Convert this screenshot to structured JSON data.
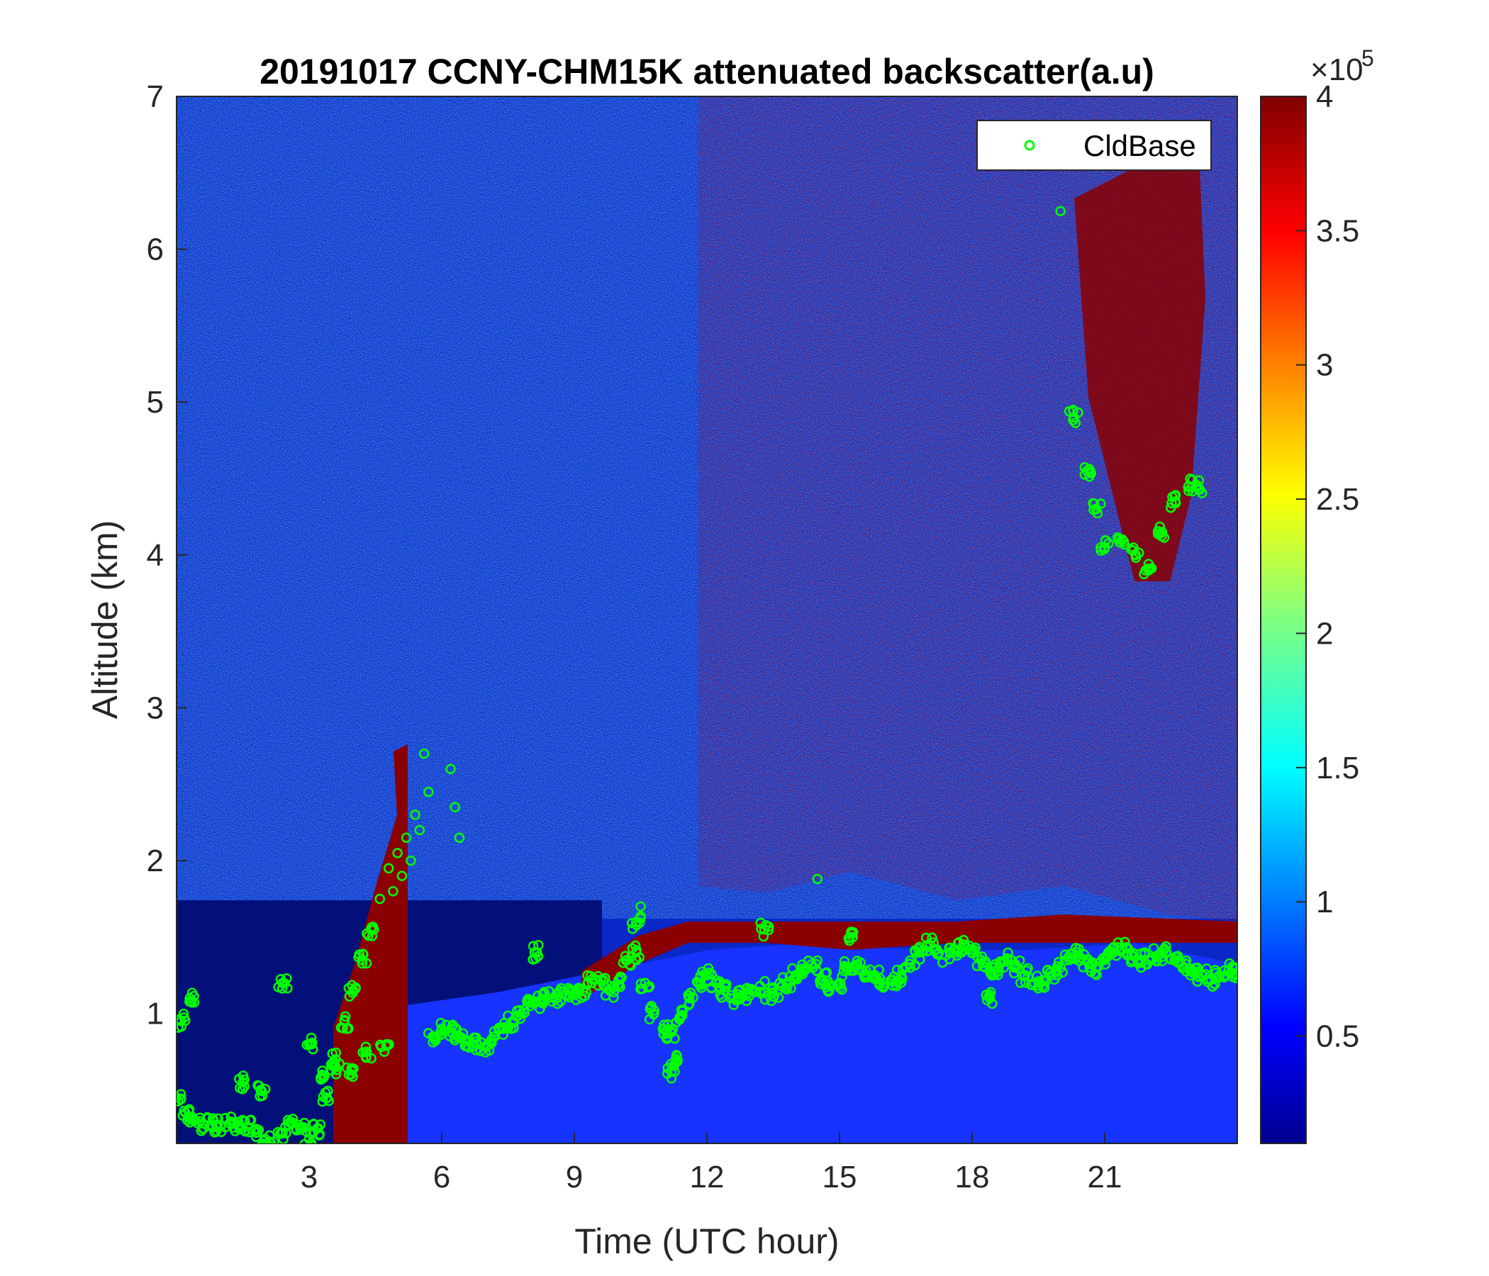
{
  "chart_data": {
    "type": "heatmap",
    "title": "20191017 CCNY-CHM15K attenuated backscatter(a.u)",
    "xlabel": "Time (UTC hour)",
    "ylabel": "Altitude (km)",
    "xlim": [
      0,
      24
    ],
    "ylim": [
      0.15,
      7
    ],
    "xticks": [
      3,
      6,
      9,
      12,
      15,
      18,
      21
    ],
    "yticks": [
      1,
      2,
      3,
      4,
      5,
      6,
      7
    ],
    "colorbar": {
      "colormap": "jet",
      "range": [
        0.1,
        4
      ],
      "ticks": [
        0.5,
        1,
        1.5,
        2,
        2.5,
        3,
        3.5,
        4
      ],
      "tick_labels": [
        "0.5",
        "1",
        "1.5",
        "2",
        "2.5",
        "3",
        "3.5",
        "4"
      ],
      "multiplier_base": "×10",
      "multiplier_exp": "5"
    },
    "legend": {
      "placement": "top-right",
      "entries": [
        "CldBase"
      ]
    },
    "series": [
      {
        "name": "CldBase",
        "marker": "circle-open",
        "color": "#00ff00",
        "x": [
          0.0,
          0.2,
          0.4,
          0.6,
          0.8,
          1.0,
          1.2,
          1.4,
          1.6,
          1.8,
          2.0,
          2.2,
          2.4,
          2.6,
          2.8,
          3.0,
          3.2,
          3.4,
          3.6,
          3.8,
          4.0,
          4.2,
          4.4,
          4.6,
          4.8,
          5.0,
          5.2,
          5.4,
          5.6,
          5.8,
          6.0,
          6.2,
          6.4,
          6.6,
          6.8,
          7.0,
          7.2,
          7.4,
          7.6,
          7.8,
          8.0,
          8.2,
          8.4,
          8.6,
          8.8,
          9.0,
          9.2,
          9.4,
          9.6,
          9.8,
          10.0,
          10.2,
          10.4,
          10.6,
          10.8,
          11.0,
          11.2,
          11.4,
          11.6,
          11.8,
          12.0,
          12.2,
          12.4,
          12.6,
          12.8,
          13.0,
          13.2,
          13.4,
          13.6,
          13.8,
          14.0,
          14.2,
          14.4,
          14.6,
          14.8,
          15.0,
          15.2,
          15.4,
          15.6,
          15.8,
          16.0,
          16.2,
          16.4,
          16.6,
          16.8,
          17.0,
          17.2,
          17.4,
          17.6,
          17.8,
          18.0,
          18.2,
          18.4,
          18.6,
          18.8,
          19.0,
          19.2,
          19.4,
          19.6,
          19.8,
          20.0,
          20.2,
          20.4,
          20.6,
          20.8,
          21.0,
          21.2,
          21.4,
          21.6,
          21.8,
          22.0,
          22.2,
          22.4,
          22.6,
          22.8,
          23.0,
          23.2,
          23.4,
          23.6,
          23.8,
          24.0,
          0.1,
          0.3,
          1.5,
          1.9,
          2.4,
          3.0,
          3.3,
          3.6,
          3.9,
          4.3,
          4.7,
          4.9,
          5.1,
          5.3,
          5.5,
          5.7,
          6.2,
          6.3,
          6.4,
          8.1,
          10.4,
          10.5,
          11.2,
          11.3,
          13.3,
          14.5,
          15.3,
          18.4,
          20.0,
          20.3,
          20.6,
          20.8,
          21.0,
          21.4,
          21.7,
          22.0,
          22.3,
          22.6,
          22.9,
          23.1
        ],
        "y": [
          0.45,
          0.35,
          0.3,
          0.28,
          0.27,
          0.27,
          0.28,
          0.27,
          0.26,
          0.22,
          0.18,
          0.16,
          0.22,
          0.28,
          0.24,
          0.18,
          0.25,
          0.45,
          0.7,
          0.95,
          1.15,
          1.35,
          1.55,
          1.75,
          1.95,
          2.05,
          2.15,
          2.3,
          2.7,
          0.85,
          0.9,
          0.88,
          0.85,
          0.82,
          0.8,
          0.78,
          0.85,
          0.9,
          0.95,
          1.0,
          1.05,
          1.08,
          1.1,
          1.1,
          1.12,
          1.12,
          1.15,
          1.2,
          1.22,
          1.15,
          1.22,
          1.35,
          1.4,
          1.2,
          1.0,
          0.9,
          0.88,
          0.98,
          1.1,
          1.2,
          1.25,
          1.2,
          1.15,
          1.1,
          1.12,
          1.15,
          1.18,
          1.12,
          1.15,
          1.2,
          1.25,
          1.28,
          1.3,
          1.22,
          1.18,
          1.2,
          1.3,
          1.32,
          1.28,
          1.25,
          1.2,
          1.22,
          1.25,
          1.3,
          1.4,
          1.45,
          1.42,
          1.38,
          1.42,
          1.45,
          1.4,
          1.35,
          1.28,
          1.3,
          1.35,
          1.3,
          1.25,
          1.2,
          1.18,
          1.25,
          1.3,
          1.35,
          1.38,
          1.35,
          1.3,
          1.35,
          1.4,
          1.42,
          1.38,
          1.35,
          1.35,
          1.38,
          1.4,
          1.35,
          1.3,
          1.28,
          1.25,
          1.22,
          1.25,
          1.28,
          1.25,
          0.95,
          1.1,
          0.55,
          0.5,
          1.2,
          0.8,
          0.6,
          0.65,
          0.6,
          0.75,
          0.75,
          1.8,
          1.9,
          2.0,
          2.2,
          2.45,
          2.6,
          2.35,
          2.15,
          1.4,
          1.6,
          1.7,
          0.62,
          0.68,
          1.55,
          1.88,
          1.5,
          1.1,
          6.25,
          4.9,
          4.55,
          4.3,
          4.05,
          4.1,
          4.0,
          3.9,
          4.15,
          4.35,
          4.45,
          4.45
        ]
      }
    ]
  }
}
